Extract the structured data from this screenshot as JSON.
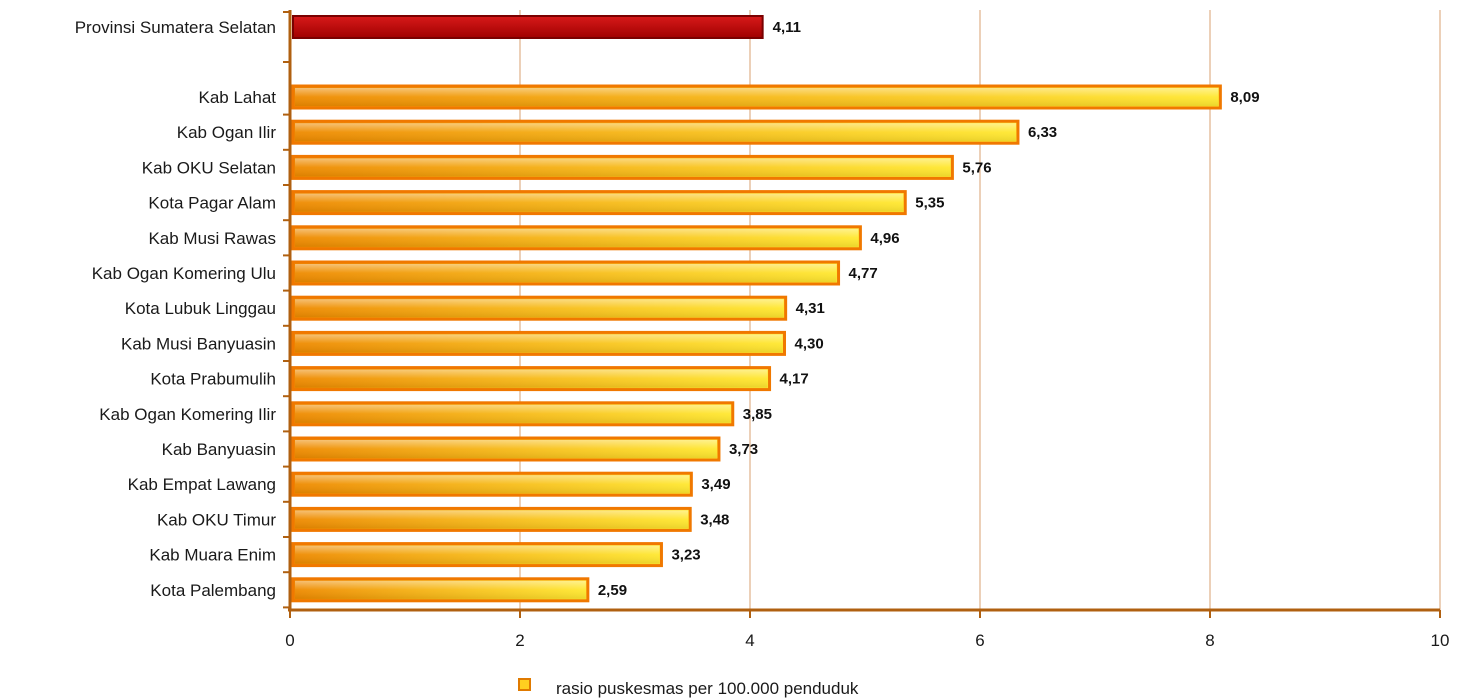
{
  "chart_data": {
    "type": "bar",
    "orientation": "horizontal",
    "categories": [
      "Provinsi Sumatera Selatan",
      "Kab Lahat",
      "Kab Ogan Ilir",
      "Kab OKU Selatan",
      "Kota Pagar Alam",
      "Kab Musi Rawas",
      "Kab Ogan Komering Ulu",
      "Kota Lubuk Linggau",
      "Kab Musi Banyuasin",
      "Kota Prabumulih",
      "Kab Ogan Komering Ilir",
      "Kab Banyuasin",
      "Kab Empat Lawang",
      "Kab OKU Timur",
      "Kab Muara Enim",
      "Kota Palembang"
    ],
    "values": [
      4.11,
      8.09,
      6.33,
      5.76,
      5.35,
      4.96,
      4.77,
      4.31,
      4.3,
      4.17,
      3.85,
      3.73,
      3.49,
      3.48,
      3.23,
      2.59
    ],
    "value_labels": [
      "4,11",
      "8,09",
      "6,33",
      "5,76",
      "5,35",
      "4,96",
      "4,77",
      "4,31",
      "4,30",
      "4,17",
      "3,85",
      "3,73",
      "3,49",
      "3,48",
      "3,23",
      "2,59"
    ],
    "highlight_index": 0,
    "xlim": [
      0,
      10
    ],
    "xticks": [
      0,
      2,
      4,
      6,
      8,
      10
    ],
    "xtick_labels": [
      "0",
      "2",
      "4",
      "6",
      "8",
      "10"
    ],
    "title": "",
    "xlabel": "",
    "ylabel": "",
    "grid": "vertical",
    "legend": {
      "position": "bottom",
      "entries": [
        "rasio puskesmas per 100.000 penduduk"
      ]
    },
    "colors": {
      "highlight_bar": "#c00000",
      "highlight_bar_edge": "#7a0000",
      "bar_start": "#ee8a00",
      "bar_end": "#ffe830",
      "bar_edge": "#f07800",
      "axis": "#b06010",
      "grid": "#d9a070"
    }
  }
}
